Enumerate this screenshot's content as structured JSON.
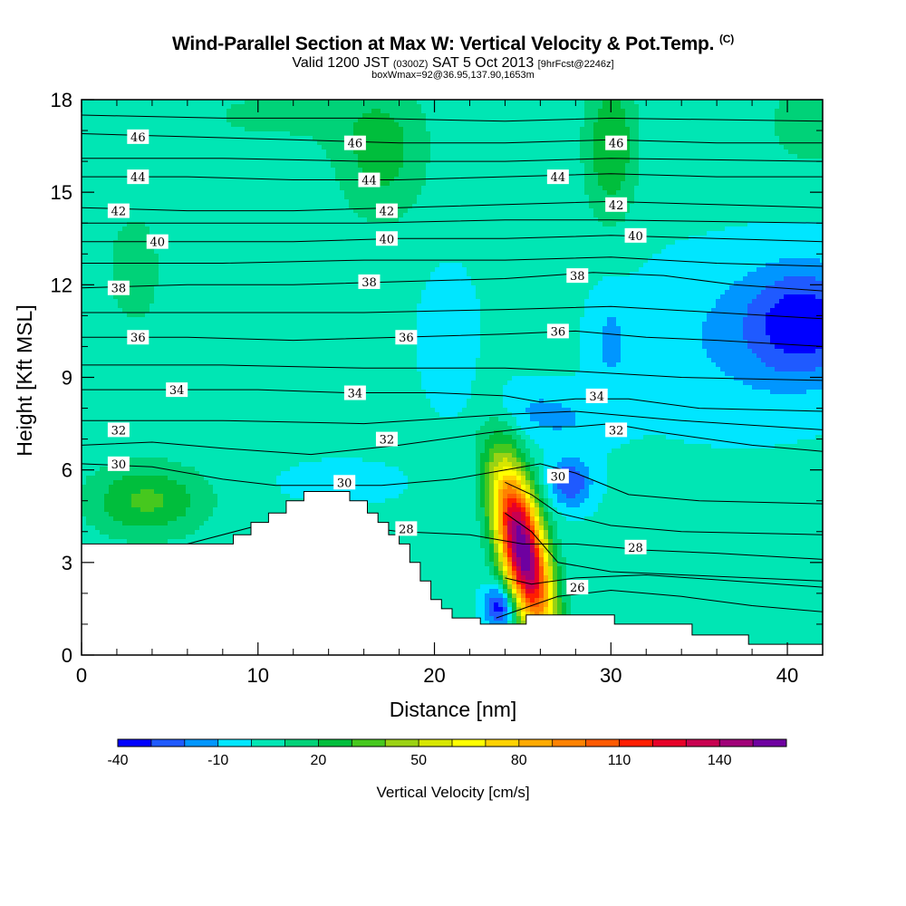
{
  "title": "Wind-Parallel Section at Max W: Vertical Velocity & Pot.Temp.",
  "title_mark": "(C)",
  "subtitle_main_a": "Valid 1200 JST",
  "subtitle_small_a": "(0300Z)",
  "subtitle_main_b": "SAT 5 Oct 2013",
  "subtitle_small_b": "[9hrFcst@2246z]",
  "subtitle2": "boxWmax=92@36.95,137.90,1653m",
  "chart_data": {
    "type": "heatmap",
    "xlabel": "Distance [nm]",
    "ylabel": "Height [Kft MSL]",
    "xlim": [
      0,
      42
    ],
    "ylim": [
      0,
      18
    ],
    "x_ticks": [
      0,
      10,
      20,
      30,
      40
    ],
    "y_ticks": [
      0,
      3,
      6,
      9,
      12,
      15,
      18
    ],
    "colorbar": {
      "title": "Vertical Velocity [cm/s]",
      "levels": [
        -40,
        -30,
        -20,
        -10,
        0,
        10,
        20,
        30,
        40,
        50,
        60,
        70,
        80,
        90,
        100,
        110,
        120,
        130,
        140,
        150,
        160
      ],
      "tick_labels": [
        "-40",
        "-10",
        "20",
        "50",
        "80",
        "110",
        "140"
      ],
      "tick_values": [
        -40,
        -10,
        20,
        50,
        80,
        110,
        140
      ],
      "colors": [
        "#0000ff",
        "#1f5aff",
        "#0096ff",
        "#00e6ff",
        "#00e6b4",
        "#00d278",
        "#00be3c",
        "#46c81e",
        "#9bd214",
        "#d7e600",
        "#ffff00",
        "#ffd200",
        "#ffaa00",
        "#ff8200",
        "#ff5a00",
        "#ff1e00",
        "#e60028",
        "#c80050",
        "#a00078",
        "#6e00a0"
      ]
    },
    "terrain_profile": [
      [
        0,
        3.6
      ],
      [
        8.6,
        3.6
      ],
      [
        8.6,
        3.9
      ],
      [
        9.6,
        3.9
      ],
      [
        9.6,
        4.3
      ],
      [
        10.6,
        4.3
      ],
      [
        10.6,
        4.6
      ],
      [
        11.6,
        4.6
      ],
      [
        11.6,
        5.0
      ],
      [
        12.6,
        5.0
      ],
      [
        12.6,
        5.3
      ],
      [
        15.2,
        5.3
      ],
      [
        15.2,
        5.0
      ],
      [
        16.2,
        5.0
      ],
      [
        16.2,
        4.6
      ],
      [
        16.8,
        4.6
      ],
      [
        16.8,
        4.3
      ],
      [
        17.4,
        4.3
      ],
      [
        17.4,
        3.9
      ],
      [
        18.0,
        3.9
      ],
      [
        18.0,
        3.6
      ],
      [
        18.6,
        3.6
      ],
      [
        18.6,
        3.0
      ],
      [
        19.2,
        3.0
      ],
      [
        19.2,
        2.4
      ],
      [
        19.8,
        2.4
      ],
      [
        19.8,
        1.8
      ],
      [
        20.4,
        1.8
      ],
      [
        20.4,
        1.5
      ],
      [
        21.0,
        1.5
      ],
      [
        21.0,
        1.2
      ],
      [
        22.6,
        1.2
      ],
      [
        22.6,
        1.0
      ],
      [
        25.2,
        1.0
      ],
      [
        25.2,
        1.3
      ],
      [
        30.2,
        1.3
      ],
      [
        30.2,
        1.0
      ],
      [
        34.6,
        1.0
      ],
      [
        34.6,
        0.65
      ],
      [
        37.8,
        0.65
      ],
      [
        37.8,
        0.35
      ],
      [
        42,
        0.35
      ]
    ],
    "velocity_features": [
      {
        "x": 25.0,
        "y": 3.4,
        "rx": 1.3,
        "ry": 2.7,
        "w": 160,
        "tilt": -0.35
      },
      {
        "x": 3.7,
        "y": 5.0,
        "rx": 3.4,
        "ry": 1.2,
        "w": 30,
        "tilt": 0
      },
      {
        "x": 23.8,
        "y": 1.6,
        "rx": 0.9,
        "ry": 0.7,
        "w": -45,
        "tilt": 0
      },
      {
        "x": 27.7,
        "y": 5.6,
        "rx": 1.2,
        "ry": 0.8,
        "w": -32,
        "tilt": 0
      },
      {
        "x": 26.4,
        "y": 7.8,
        "rx": 3.0,
        "ry": 0.9,
        "w": -15,
        "tilt": -0.9
      },
      {
        "x": 41.0,
        "y": 10.8,
        "rx": 3.2,
        "ry": 1.8,
        "w": -35,
        "tilt": 0
      },
      {
        "x": 37.0,
        "y": 10.2,
        "rx": 6.0,
        "ry": 2.6,
        "w": -12,
        "tilt": 0
      },
      {
        "x": 20.8,
        "y": 10.3,
        "rx": 1.4,
        "ry": 1.9,
        "w": -12,
        "tilt": 0
      },
      {
        "x": 30.0,
        "y": 10.1,
        "rx": 1.0,
        "ry": 1.6,
        "w": -12,
        "tilt": 0
      },
      {
        "x": 17.0,
        "y": 16.2,
        "rx": 2.6,
        "ry": 2.2,
        "w": 22,
        "tilt": 0
      },
      {
        "x": 30.0,
        "y": 16.5,
        "rx": 1.5,
        "ry": 2.4,
        "w": 28,
        "tilt": 0
      },
      {
        "x": 3.0,
        "y": 12.5,
        "rx": 2.8,
        "ry": 3.4,
        "w": 10,
        "tilt": 0
      },
      {
        "x": 41.5,
        "y": 17.3,
        "rx": 2.5,
        "ry": 1.4,
        "w": 18,
        "tilt": 0
      },
      {
        "x": 11.0,
        "y": 17.5,
        "rx": 6.0,
        "ry": 1.2,
        "w": 10,
        "tilt": 0
      },
      {
        "x": 14.8,
        "y": 5.6,
        "rx": 3.0,
        "ry": 0.6,
        "w": -10,
        "tilt": 0
      },
      {
        "x": 36.0,
        "y": 1.9,
        "rx": 4.5,
        "ry": 1.2,
        "w": 6,
        "tilt": 0
      }
    ],
    "isentropes": [
      {
        "level": 26,
        "points": [
          [
            23.5,
            1.2
          ],
          [
            25,
            1.5
          ],
          [
            27,
            1.9
          ],
          [
            30,
            2.1
          ],
          [
            34,
            1.9
          ],
          [
            38,
            1.6
          ],
          [
            42,
            1.4
          ]
        ]
      },
      {
        "level": 28,
        "points": [
          [
            6,
            3.6
          ],
          [
            10,
            4.2
          ],
          [
            14,
            4.3
          ],
          [
            18,
            4.0
          ],
          [
            22,
            3.9
          ],
          [
            25,
            3.6
          ],
          [
            28,
            3.6
          ],
          [
            32,
            3.4
          ],
          [
            36,
            3.3
          ],
          [
            42,
            3.1
          ]
        ]
      },
      {
        "level": 30,
        "points": [
          [
            0,
            6.2
          ],
          [
            4,
            6.1
          ],
          [
            8,
            5.7
          ],
          [
            11,
            5.5
          ],
          [
            14,
            5.5
          ],
          [
            17,
            5.5
          ],
          [
            21,
            5.7
          ],
          [
            24,
            6.0
          ],
          [
            26,
            6.2
          ],
          [
            28,
            5.9
          ],
          [
            31,
            5.2
          ],
          [
            35,
            5.0
          ],
          [
            42,
            4.9
          ]
        ]
      },
      {
        "level": 32,
        "points": [
          [
            0,
            6.8
          ],
          [
            4,
            6.9
          ],
          [
            8,
            6.7
          ],
          [
            13,
            6.5
          ],
          [
            18,
            6.8
          ],
          [
            23,
            7.2
          ],
          [
            26,
            7.4
          ],
          [
            28,
            7.4
          ],
          [
            30,
            7.5
          ],
          [
            33,
            7.2
          ],
          [
            38,
            6.8
          ],
          [
            42,
            6.6
          ]
        ]
      },
      {
        "level": 34,
        "points": [
          [
            0,
            8.6
          ],
          [
            5,
            8.6
          ],
          [
            10,
            8.6
          ],
          [
            15,
            8.5
          ],
          [
            20,
            8.5
          ],
          [
            24,
            8.4
          ],
          [
            26,
            8.2
          ],
          [
            28,
            8.3
          ],
          [
            31,
            8.3
          ],
          [
            35,
            8.0
          ],
          [
            42,
            7.9
          ]
        ]
      },
      {
        "level": 36,
        "points": [
          [
            0,
            10.3
          ],
          [
            6,
            10.3
          ],
          [
            12,
            10.2
          ],
          [
            18,
            10.3
          ],
          [
            24,
            10.4
          ],
          [
            28,
            10.5
          ],
          [
            32,
            10.3
          ],
          [
            36,
            10.2
          ],
          [
            42,
            10.0
          ]
        ]
      },
      {
        "level": 38,
        "points": [
          [
            0,
            11.9
          ],
          [
            6,
            12.0
          ],
          [
            12,
            12.0
          ],
          [
            18,
            12.1
          ],
          [
            24,
            12.2
          ],
          [
            29,
            12.4
          ],
          [
            33,
            12.3
          ],
          [
            37,
            12.0
          ],
          [
            42,
            11.8
          ]
        ]
      },
      {
        "level": 40,
        "points": [
          [
            0,
            13.4
          ],
          [
            6,
            13.4
          ],
          [
            12,
            13.4
          ],
          [
            18,
            13.5
          ],
          [
            24,
            13.5
          ],
          [
            30,
            13.6
          ],
          [
            36,
            13.5
          ],
          [
            42,
            13.4
          ]
        ]
      },
      {
        "level": 42,
        "points": [
          [
            0,
            14.5
          ],
          [
            6,
            14.4
          ],
          [
            12,
            14.4
          ],
          [
            18,
            14.5
          ],
          [
            24,
            14.6
          ],
          [
            30,
            14.7
          ],
          [
            36,
            14.6
          ],
          [
            42,
            14.5
          ]
        ]
      },
      {
        "level": 44,
        "points": [
          [
            0,
            15.5
          ],
          [
            6,
            15.5
          ],
          [
            12,
            15.4
          ],
          [
            18,
            15.4
          ],
          [
            24,
            15.5
          ],
          [
            30,
            15.6
          ],
          [
            36,
            15.5
          ],
          [
            42,
            15.5
          ]
        ]
      },
      {
        "level": 46,
        "points": [
          [
            0,
            16.9
          ],
          [
            6,
            16.8
          ],
          [
            12,
            16.7
          ],
          [
            18,
            16.6
          ],
          [
            24,
            16.6
          ],
          [
            30,
            16.7
          ],
          [
            36,
            16.6
          ],
          [
            42,
            16.6
          ]
        ]
      }
    ],
    "extra_contours": [
      [
        [
          0,
          7.6
        ],
        [
          8,
          7.6
        ],
        [
          16,
          7.5
        ],
        [
          24,
          7.8
        ],
        [
          28,
          7.9
        ],
        [
          34,
          7.6
        ],
        [
          42,
          7.3
        ]
      ],
      [
        [
          0,
          9.4
        ],
        [
          8,
          9.4
        ],
        [
          16,
          9.3
        ],
        [
          24,
          9.3
        ],
        [
          28,
          9.2
        ],
        [
          34,
          9.0
        ],
        [
          42,
          8.9
        ]
      ],
      [
        [
          0,
          11.1
        ],
        [
          8,
          11.1
        ],
        [
          16,
          11.1
        ],
        [
          24,
          11.2
        ],
        [
          30,
          11.3
        ],
        [
          36,
          11.1
        ],
        [
          42,
          10.9
        ]
      ],
      [
        [
          0,
          12.7
        ],
        [
          8,
          12.7
        ],
        [
          16,
          12.8
        ],
        [
          24,
          12.8
        ],
        [
          30,
          12.9
        ],
        [
          36,
          12.7
        ],
        [
          42,
          12.6
        ]
      ],
      [
        [
          0,
          14.0
        ],
        [
          8,
          14.0
        ],
        [
          16,
          14.0
        ],
        [
          24,
          14.1
        ],
        [
          30,
          14.1
        ],
        [
          42,
          14.0
        ]
      ],
      [
        [
          0,
          16.1
        ],
        [
          8,
          16.1
        ],
        [
          16,
          16.0
        ],
        [
          24,
          16.0
        ],
        [
          30,
          16.1
        ],
        [
          42,
          16.0
        ]
      ],
      [
        [
          0,
          17.5
        ],
        [
          8,
          17.4
        ],
        [
          16,
          17.4
        ],
        [
          24,
          17.3
        ],
        [
          30,
          17.4
        ],
        [
          42,
          17.3
        ]
      ],
      [
        [
          24,
          5.6
        ],
        [
          25.5,
          5.2
        ],
        [
          27,
          4.6
        ],
        [
          30,
          4.2
        ],
        [
          34,
          4.0
        ],
        [
          42,
          3.9
        ]
      ],
      [
        [
          24,
          4.6
        ],
        [
          25.5,
          4.0
        ],
        [
          27,
          3.0
        ],
        [
          30,
          2.7
        ],
        [
          34,
          2.6
        ],
        [
          42,
          2.4
        ]
      ],
      [
        [
          24,
          2.5
        ],
        [
          25.5,
          2.3
        ],
        [
          28,
          2.5
        ],
        [
          32,
          2.6
        ],
        [
          42,
          2.2
        ]
      ]
    ],
    "theta_labels": [
      {
        "text": "46",
        "x": 3.2,
        "y": 16.8
      },
      {
        "text": "46",
        "x": 15.5,
        "y": 16.6
      },
      {
        "text": "46",
        "x": 30.3,
        "y": 16.6
      },
      {
        "text": "44",
        "x": 3.2,
        "y": 15.5
      },
      {
        "text": "44",
        "x": 16.3,
        "y": 15.4
      },
      {
        "text": "44",
        "x": 27.0,
        "y": 15.5
      },
      {
        "text": "42",
        "x": 2.1,
        "y": 14.4
      },
      {
        "text": "42",
        "x": 17.3,
        "y": 14.4
      },
      {
        "text": "42",
        "x": 30.3,
        "y": 14.6
      },
      {
        "text": "40",
        "x": 4.3,
        "y": 13.4
      },
      {
        "text": "40",
        "x": 17.3,
        "y": 13.5
      },
      {
        "text": "40",
        "x": 31.4,
        "y": 13.6
      },
      {
        "text": "38",
        "x": 2.1,
        "y": 11.9
      },
      {
        "text": "38",
        "x": 16.3,
        "y": 12.1
      },
      {
        "text": "38",
        "x": 28.1,
        "y": 12.3
      },
      {
        "text": "36",
        "x": 3.2,
        "y": 10.3
      },
      {
        "text": "36",
        "x": 18.4,
        "y": 10.3
      },
      {
        "text": "36",
        "x": 27.0,
        "y": 10.5
      },
      {
        "text": "34",
        "x": 5.4,
        "y": 8.6
      },
      {
        "text": "34",
        "x": 15.5,
        "y": 8.5
      },
      {
        "text": "34",
        "x": 29.2,
        "y": 8.4
      },
      {
        "text": "32",
        "x": 2.1,
        "y": 7.3
      },
      {
        "text": "32",
        "x": 17.3,
        "y": 7.0
      },
      {
        "text": "32",
        "x": 30.3,
        "y": 7.3
      },
      {
        "text": "30",
        "x": 2.1,
        "y": 6.2
      },
      {
        "text": "30",
        "x": 14.9,
        "y": 5.6
      },
      {
        "text": "30",
        "x": 27.0,
        "y": 5.8
      },
      {
        "text": "28",
        "x": 18.4,
        "y": 4.1
      },
      {
        "text": "28",
        "x": 31.4,
        "y": 3.5
      },
      {
        "text": "26",
        "x": 28.1,
        "y": 2.2
      }
    ]
  }
}
